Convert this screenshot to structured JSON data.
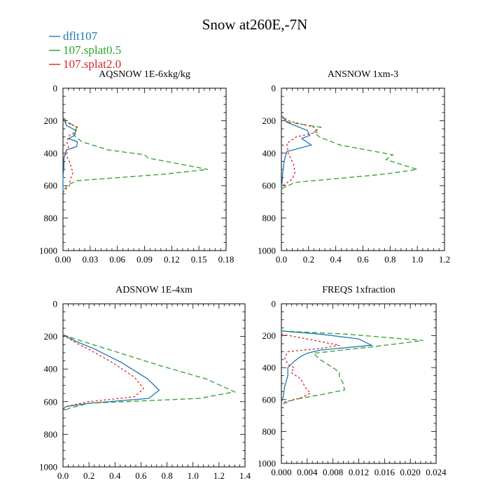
{
  "title": "Snow at260E,-7N",
  "colors": {
    "dflt107": "#1f77b4",
    "splat05": "#2ca02c",
    "splat20": "#d62728"
  },
  "legend": [
    {
      "label": "dflt107",
      "color": "#1f77b4",
      "dash": "solid"
    },
    {
      "label": "107.splat0.5",
      "color": "#2ca02c",
      "dash": "dashed"
    },
    {
      "label": "107.splat2.0",
      "color": "#d62728",
      "dash": "dotted"
    }
  ],
  "chart_data": [
    {
      "type": "line",
      "title": "AQSNOW  1E-6xkg/kg",
      "xlim": [
        0,
        0.18
      ],
      "ylim": [
        1000,
        0
      ],
      "xticks": [
        "0.00",
        "0.03",
        "0.06",
        "0.09",
        "0.12",
        "0.15",
        "0.18"
      ],
      "yticks": [
        "0",
        "200",
        "400",
        "600",
        "800",
        "1000"
      ],
      "series": [
        {
          "name": "dflt107",
          "points": [
            [
              0,
              180
            ],
            [
              0.004,
              230
            ],
            [
              0.014,
              260
            ],
            [
              0.013,
              290
            ],
            [
              0.006,
              310
            ],
            [
              0.016,
              330
            ],
            [
              0.015,
              360
            ],
            [
              0.004,
              380
            ],
            [
              0.001,
              430
            ],
            [
              0.001,
              480
            ],
            [
              0,
              560
            ],
            [
              0,
              600
            ],
            [
              0,
              640
            ]
          ]
        },
        {
          "name": "107.splat0.5",
          "points": [
            [
              0,
              180
            ],
            [
              0.006,
              210
            ],
            [
              0.015,
              240
            ],
            [
              0.013,
              270
            ],
            [
              0.012,
              290
            ],
            [
              0.021,
              330
            ],
            [
              0.05,
              380
            ],
            [
              0.09,
              410
            ],
            [
              0.094,
              430
            ],
            [
              0.16,
              500
            ],
            [
              0.11,
              530
            ],
            [
              0.015,
              570
            ],
            [
              0.004,
              600
            ],
            [
              0,
              640
            ]
          ]
        },
        {
          "name": "107.splat2.0",
          "points": [
            [
              0,
              180
            ],
            [
              0.003,
              210
            ],
            [
              0.016,
              240
            ],
            [
              0.014,
              270
            ],
            [
              0.007,
              290
            ],
            [
              0.004,
              330
            ],
            [
              0.006,
              360
            ],
            [
              0.002,
              400
            ],
            [
              0.007,
              450
            ],
            [
              0.011,
              520
            ],
            [
              0.008,
              560
            ],
            [
              0.007,
              600
            ],
            [
              0,
              640
            ]
          ]
        }
      ]
    },
    {
      "type": "line",
      "title": "ANSNOW  1xm-3",
      "xlim": [
        0,
        1.2
      ],
      "ylim": [
        1000,
        0
      ],
      "xticks": [
        "0.0",
        "0.2",
        "0.4",
        "0.6",
        "0.8",
        "1.0",
        "1.2"
      ],
      "yticks": [
        "0",
        "200",
        "400",
        "600",
        "800",
        "1000"
      ],
      "series": [
        {
          "name": "dflt107",
          "points": [
            [
              0,
              170
            ],
            [
              0.04,
              210
            ],
            [
              0.19,
              260
            ],
            [
              0.21,
              290
            ],
            [
              0.15,
              310
            ],
            [
              0.22,
              350
            ],
            [
              0.04,
              390
            ],
            [
              0.02,
              450
            ],
            [
              0.01,
              520
            ],
            [
              0.005,
              580
            ],
            [
              0,
              620
            ]
          ]
        },
        {
          "name": "107.splat0.5",
          "points": [
            [
              0,
              170
            ],
            [
              0.05,
              210
            ],
            [
              0.29,
              240
            ],
            [
              0.24,
              270
            ],
            [
              0.28,
              300
            ],
            [
              0.43,
              350
            ],
            [
              0.82,
              410
            ],
            [
              0.77,
              440
            ],
            [
              1.0,
              500
            ],
            [
              0.75,
              530
            ],
            [
              0.1,
              580
            ],
            [
              0,
              620
            ]
          ]
        },
        {
          "name": "107.splat2.0",
          "points": [
            [
              0,
              170
            ],
            [
              0.05,
              200
            ],
            [
              0.24,
              240
            ],
            [
              0.27,
              270
            ],
            [
              0.11,
              300
            ],
            [
              0.04,
              340
            ],
            [
              0.05,
              400
            ],
            [
              0.09,
              470
            ],
            [
              0.1,
              520
            ],
            [
              0.08,
              560
            ],
            [
              0.01,
              600
            ],
            [
              0,
              620
            ]
          ]
        }
      ]
    },
    {
      "type": "line",
      "title": "ADSNOW  1E-4xm",
      "xlim": [
        0,
        1.4
      ],
      "ylim": [
        1000,
        0
      ],
      "xticks": [
        "0.0",
        "0.2",
        "0.4",
        "0.6",
        "0.8",
        "1.0",
        "1.2",
        "1.4"
      ],
      "yticks": [
        "0",
        "200",
        "400",
        "600",
        "800",
        "1000"
      ],
      "series": [
        {
          "name": "dflt107",
          "points": [
            [
              0,
              190
            ],
            [
              0.1,
              230
            ],
            [
              0.25,
              280
            ],
            [
              0.45,
              360
            ],
            [
              0.65,
              460
            ],
            [
              0.74,
              530
            ],
            [
              0.66,
              580
            ],
            [
              0.2,
              610
            ],
            [
              0.02,
              630
            ],
            [
              0,
              650
            ]
          ]
        },
        {
          "name": "107.splat0.5",
          "points": [
            [
              0,
              190
            ],
            [
              0.15,
              230
            ],
            [
              0.35,
              280
            ],
            [
              0.75,
              380
            ],
            [
              1.1,
              460
            ],
            [
              1.32,
              540
            ],
            [
              1.05,
              580
            ],
            [
              0.2,
              610
            ],
            [
              0.05,
              640
            ],
            [
              0,
              660
            ]
          ]
        },
        {
          "name": "107.splat2.0",
          "points": [
            [
              0,
              190
            ],
            [
              0.1,
              240
            ],
            [
              0.2,
              280
            ],
            [
              0.38,
              360
            ],
            [
              0.55,
              450
            ],
            [
              0.62,
              520
            ],
            [
              0.55,
              570
            ],
            [
              0.2,
              600
            ],
            [
              0.02,
              630
            ],
            [
              0,
              650
            ]
          ]
        }
      ]
    },
    {
      "type": "line",
      "title": "FREQS  1xfraction",
      "xlim": [
        0,
        0.024
      ],
      "ylim": [
        1000,
        0
      ],
      "xticks": [
        "0.000",
        "0.004",
        "0.008",
        "0.012",
        "0.016",
        "0.020",
        "0.024"
      ],
      "yticks": [
        "0",
        "200",
        "400",
        "600",
        "800",
        "1000"
      ],
      "series": [
        {
          "name": "dflt107",
          "points": [
            [
              0,
              170
            ],
            [
              0.006,
              190
            ],
            [
              0.012,
              220
            ],
            [
              0.014,
              260
            ],
            [
              0.006,
              290
            ],
            [
              0.004,
              310
            ],
            [
              0.003,
              330
            ],
            [
              0.002,
              360
            ],
            [
              0.001,
              400
            ],
            [
              0.001,
              450
            ],
            [
              0.0005,
              520
            ],
            [
              0.0003,
              580
            ],
            [
              0,
              620
            ]
          ]
        },
        {
          "name": "107.splat0.5",
          "points": [
            [
              0,
              170
            ],
            [
              0.01,
              190
            ],
            [
              0.022,
              230
            ],
            [
              0.014,
              270
            ],
            [
              0.005,
              310
            ],
            [
              0.006,
              350
            ],
            [
              0.008,
              400
            ],
            [
              0.009,
              430
            ],
            [
              0.009,
              460
            ],
            [
              0.0095,
              490
            ],
            [
              0.0098,
              540
            ],
            [
              0.006,
              570
            ],
            [
              0.002,
              600
            ],
            [
              0,
              630
            ]
          ]
        },
        {
          "name": "107.splat2.0",
          "points": [
            [
              0,
              190
            ],
            [
              0.004,
              220
            ],
            [
              0.009,
              260
            ],
            [
              0.006,
              280
            ],
            [
              0.001,
              300
            ],
            [
              0.0005,
              340
            ],
            [
              0.001,
              380
            ],
            [
              0.002,
              400
            ],
            [
              0.0015,
              430
            ],
            [
              0.003,
              470
            ],
            [
              0.0038,
              530
            ],
            [
              0.0045,
              560
            ],
            [
              0.003,
              590
            ],
            [
              0,
              620
            ]
          ]
        }
      ]
    }
  ]
}
